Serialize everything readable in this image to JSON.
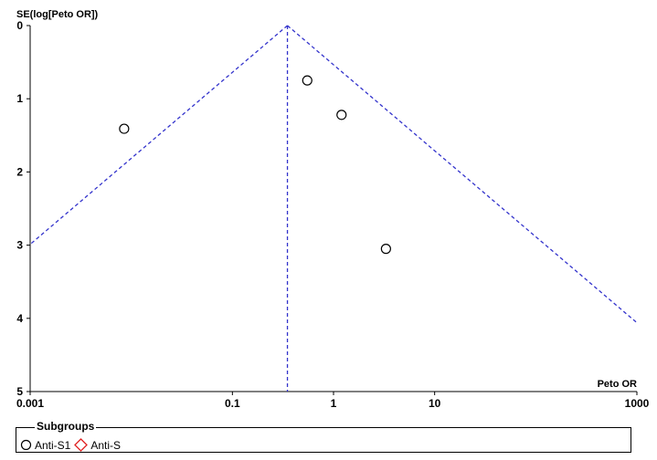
{
  "chart_data": {
    "type": "scatter",
    "title": "",
    "xlabel": "Peto OR",
    "ylabel": "SE(log[Peto OR])",
    "x_scale": "log",
    "xlim": [
      0.001,
      1000
    ],
    "ylim": [
      0,
      5
    ],
    "y_inverted": true,
    "x_ticks": [
      "0.001",
      "0.1",
      "1",
      "10",
      "1000"
    ],
    "x_tick_values": [
      0.001,
      0.1,
      1,
      10,
      1000
    ],
    "y_ticks": [
      "0",
      "1",
      "2",
      "3",
      "4",
      "5"
    ],
    "y_tick_values": [
      0,
      1,
      2,
      3,
      4,
      5
    ],
    "pooled_estimate": 0.35,
    "funnel_line_color": "#3333cc",
    "series": [
      {
        "name": "Anti-S1",
        "marker": "circle",
        "color": "#000000",
        "points": [
          {
            "x": 0.0085,
            "y": 1.41
          },
          {
            "x": 0.55,
            "y": 0.75
          },
          {
            "x": 1.2,
            "y": 1.22
          },
          {
            "x": 3.3,
            "y": 3.05
          }
        ]
      },
      {
        "name": "Anti-S",
        "marker": "diamond",
        "color": "#e02020",
        "points": []
      }
    ]
  },
  "legend": {
    "title": "Subgroups",
    "items": [
      {
        "label": "Anti-S1",
        "marker": "circle",
        "color": "#000000"
      },
      {
        "label": "Anti-S",
        "marker": "diamond",
        "color": "#e02020"
      }
    ]
  }
}
